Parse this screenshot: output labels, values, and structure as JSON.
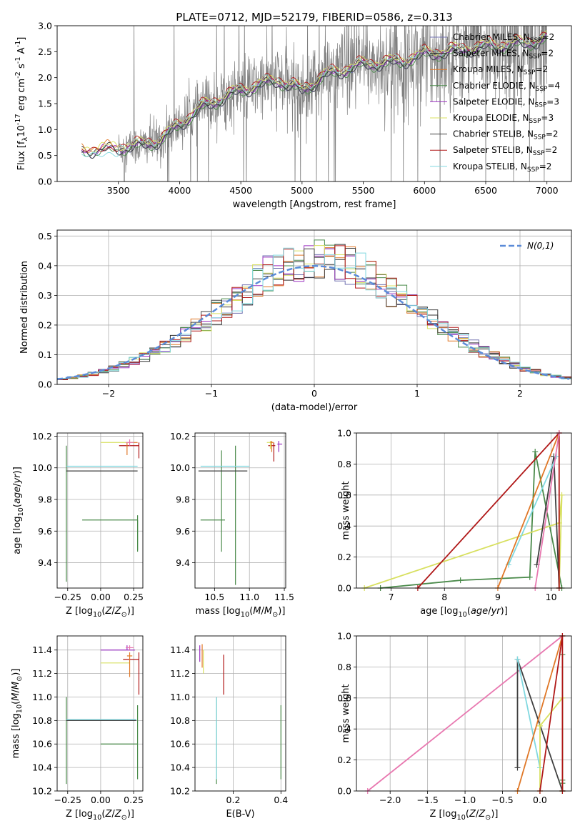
{
  "title": "PLATE=0712, MJD=52179, FIBERID=0586, z=0.313",
  "colors": {
    "Chabrier MILES": "#7070b0",
    "Salpeter MILES": "#303030",
    "Kroupa MILES": "#e07828",
    "Chabrier ELODIE": "#4a8a4a",
    "Salpeter ELODIE": "#9a30c0",
    "Kroupa ELODIE": "#d8e060",
    "Chabrier STELIB": "#404040",
    "Salpeter STELIB": "#b01818",
    "Kroupa STELIB": "#80d8e0",
    "pink": "#e878b0",
    "data": "#808080",
    "normal": "#5b8bd8"
  },
  "chart_data": [
    {
      "id": "spectrum",
      "type": "line",
      "title": "PLATE=0712, MJD=52179, FIBERID=0586, z=0.313",
      "xlabel": "wavelength [Angstrom, rest frame]",
      "ylabel": "Flux [f$_\\lambda$10$^{-17}$ erg cm$^{-2}$ s$^{-1}$ A$^{-1}$]",
      "xlim": [
        3000,
        7200
      ],
      "ylim": [
        0,
        3.0
      ],
      "xticks": [
        "3500",
        "4000",
        "4500",
        "5000",
        "5500",
        "6000",
        "6500",
        "7000"
      ],
      "yticks": [
        "0.0",
        "0.5",
        "1.0",
        "1.5",
        "2.0",
        "2.5",
        "3.0"
      ],
      "legend": [
        {
          "label": "Chabrier MILES, N",
          "sub": "SSP",
          "suffix": "=2",
          "color": "#7070b0"
        },
        {
          "label": "Salpeter MILES, N",
          "sub": "SSP",
          "suffix": "=2",
          "color": "#303030"
        },
        {
          "label": "Kroupa MILES, N",
          "sub": "SSP",
          "suffix": "=2",
          "color": "#e07828"
        },
        {
          "label": "Chabrier ELODIE, N",
          "sub": "SSP",
          "suffix": "=4",
          "color": "#4a8a4a"
        },
        {
          "label": "Salpeter ELODIE, N",
          "sub": "SSP",
          "suffix": "=3",
          "color": "#9a30c0"
        },
        {
          "label": "Kroupa ELODIE, N",
          "sub": "SSP",
          "suffix": "=3",
          "color": "#d8e060"
        },
        {
          "label": "Chabrier STELIB, N",
          "sub": "SSP",
          "suffix": "=2",
          "color": "#404040"
        },
        {
          "label": "Salpeter STELIB, N",
          "sub": "SSP",
          "suffix": "=2",
          "color": "#b01818"
        },
        {
          "label": "Kroupa STELIB, N",
          "sub": "SSP",
          "suffix": "=2",
          "color": "#80d8e0"
        }
      ],
      "model_anchor": {
        "wavelength": [
          3200,
          3500,
          3700,
          3850,
          4000,
          4200,
          4500,
          4800,
          5000,
          5200,
          5500,
          5800,
          6000,
          6200,
          6500,
          6800,
          7000
        ],
        "flux": [
          0.6,
          0.65,
          0.7,
          0.8,
          1.1,
          1.45,
          1.75,
          1.95,
          1.75,
          2.05,
          2.25,
          2.3,
          2.45,
          2.5,
          2.6,
          2.65,
          2.75
        ]
      },
      "data_range": [
        3500,
        7000
      ]
    },
    {
      "id": "residuals",
      "type": "histogram",
      "xlabel": "(data-model)/error",
      "ylabel": "Normed distribution",
      "xlim": [
        -2.5,
        2.5
      ],
      "ylim": [
        0,
        0.52
      ],
      "xticks": [
        "−2",
        "−1",
        "0",
        "1",
        "2"
      ],
      "yticks": [
        "0.0",
        "0.1",
        "0.2",
        "0.3",
        "0.4",
        "0.5"
      ],
      "legend": "$\\mathcal{N}(0,1)$",
      "bin_width": 0.1
    },
    {
      "id": "age_vs_Z",
      "type": "errorbar",
      "xlabel": "Z [log$_{10}$($Z$/$Z_\\odot$)]",
      "ylabel": "age  [log$_{10}$($age$/$yr$)]",
      "xlim": [
        -0.33,
        0.32
      ],
      "ylim": [
        9.24,
        10.22
      ],
      "xticks": [
        "−0.25",
        "0.00",
        "0.25"
      ],
      "yticks": [
        "9.4",
        "9.6",
        "9.8",
        "10.0",
        "10.2"
      ],
      "points": [
        {
          "x": 0.28,
          "y": 9.67,
          "xerr": [
            0.42,
            0.0
          ],
          "yerr": [
            0.2,
            0.0
          ],
          "color": "#4a8a4a"
        },
        {
          "x": -0.26,
          "y": 9.7,
          "xerr": [
            0.0,
            0.0
          ],
          "yerr": [
            0.42,
            0.44
          ],
          "color": "#4a8a4a"
        },
        {
          "x": 0.28,
          "y": 9.98,
          "xerr": [
            0.54,
            0.0
          ],
          "yerr": [
            0.0,
            0.0
          ],
          "color": "#404040"
        },
        {
          "x": 0.28,
          "y": 10.01,
          "xerr": [
            0.54,
            0.0
          ],
          "yerr": [
            0.0,
            0.0
          ],
          "color": "#80d8e0"
        },
        {
          "x": 0.29,
          "y": 10.14,
          "xerr": [
            0.15,
            0.0
          ],
          "yerr": [
            0.08,
            0.02
          ],
          "color": "#b01818"
        },
        {
          "x": 0.2,
          "y": 10.16,
          "xerr": [
            0.0,
            0.08
          ],
          "yerr": [
            0.08,
            0.0
          ],
          "color": "#e07828"
        },
        {
          "x": 0.0,
          "y": 10.16,
          "xerr": [
            0.0,
            0.25
          ],
          "yerr": [
            0.0,
            0.0
          ],
          "color": "#d8e060"
        },
        {
          "x": 0.22,
          "y": 10.16,
          "xerr": [
            0.03,
            0.03
          ],
          "yerr": [
            0.02,
            0.02
          ],
          "color": "#e878b0"
        },
        {
          "x": 0.28,
          "y": 9.7,
          "xerr": [
            0.0,
            0.0
          ],
          "yerr": [
            0.22,
            0.0
          ],
          "color": "#4a8a4a"
        }
      ]
    },
    {
      "id": "age_vs_mass",
      "type": "errorbar",
      "xlabel": "mass [log$_{10}$($M$/$M_\\odot$)]",
      "ylabel": "",
      "xlim": [
        10.22,
        11.52
      ],
      "ylim": [
        9.24,
        10.22
      ],
      "xticks": [
        "10.5",
        "11.0",
        "11.5"
      ],
      "yticks": [
        "9.4",
        "9.6",
        "9.8",
        "10.0",
        "10.2"
      ],
      "points": [
        {
          "x": 10.6,
          "y": 9.67,
          "xerr": [
            0.3,
            0.05
          ],
          "yerr": [
            0.2,
            0.44
          ],
          "color": "#4a8a4a"
        },
        {
          "x": 10.8,
          "y": 9.7,
          "xerr": [
            0.0,
            0.0
          ],
          "yerr": [
            0.44,
            0.44
          ],
          "color": "#4a8a4a"
        },
        {
          "x": 10.62,
          "y": 9.98,
          "xerr": [
            0.35,
            0.35
          ],
          "yerr": [
            0.0,
            0.0
          ],
          "color": "#404040"
        },
        {
          "x": 10.65,
          "y": 10.01,
          "xerr": [
            0.35,
            0.35
          ],
          "yerr": [
            0.0,
            0.0
          ],
          "color": "#80d8e0"
        },
        {
          "x": 11.35,
          "y": 10.14,
          "xerr": [
            0.08,
            0.02
          ],
          "yerr": [
            0.1,
            0.02
          ],
          "color": "#b01818"
        },
        {
          "x": 11.42,
          "y": 10.15,
          "xerr": [
            0.02,
            0.05
          ],
          "yerr": [
            0.05,
            0.02
          ],
          "color": "#9a30c0"
        },
        {
          "x": 11.3,
          "y": 10.16,
          "xerr": [
            0.05,
            0.05
          ],
          "yerr": [
            0.04,
            0.01
          ],
          "color": "#d8e060"
        },
        {
          "x": 11.32,
          "y": 10.16,
          "xerr": [
            0.02,
            0.02
          ],
          "yerr": [
            0.06,
            0.01
          ],
          "color": "#e07828"
        }
      ]
    },
    {
      "id": "weight_vs_age",
      "type": "line",
      "xlabel": "age  [log$_{10}$($age$/$yr$)]",
      "ylabel": "mass weight",
      "xlim": [
        6.35,
        10.38
      ],
      "ylim": [
        0,
        1.0
      ],
      "xticks": [
        "7",
        "8",
        "9",
        "10"
      ],
      "yticks": [
        "0.0",
        "0.2",
        "0.4",
        "0.6",
        "0.8",
        "1.0"
      ],
      "series": [
        {
          "color": "#4a8a4a",
          "x": [
            6.8,
            8.3,
            9.6,
            9.7,
            10.2
          ],
          "y": [
            0.0,
            0.05,
            0.07,
            0.88,
            0.0
          ]
        },
        {
          "color": "#d8e060",
          "x": [
            6.5,
            10.15,
            10.2,
            10.15
          ],
          "y": [
            0.0,
            0.42,
            0.6,
            0.0
          ]
        },
        {
          "color": "#404040",
          "x": [
            9.73,
            10.05,
            10.15
          ],
          "y": [
            0.15,
            0.85,
            0.0
          ]
        },
        {
          "color": "#80d8e0",
          "x": [
            9.2,
            10.1
          ],
          "y": [
            0.15,
            0.85
          ]
        },
        {
          "color": "#e07828",
          "x": [
            9.0,
            10.15
          ],
          "y": [
            0.0,
            1.0
          ]
        },
        {
          "color": "#b01818",
          "x": [
            7.5,
            10.15,
            10.15
          ],
          "y": [
            0.0,
            1.0,
            0.0
          ]
        },
        {
          "color": "#e878b0",
          "x": [
            9.7,
            10.15
          ],
          "y": [
            0.0,
            1.0
          ]
        }
      ]
    },
    {
      "id": "mass_vs_Z",
      "type": "errorbar",
      "xlabel": "Z [log$_{10}$($Z$/$Z_\\odot$)]",
      "ylabel": "mass [log$_{10}$($M$/$M_\\odot$)]",
      "xlim": [
        -0.33,
        0.32
      ],
      "ylim": [
        10.2,
        11.52
      ],
      "xticks": [
        "−0.25",
        "0.00",
        "0.25"
      ],
      "yticks": [
        "10.2",
        "10.4",
        "10.6",
        "10.8",
        "11.0",
        "11.2",
        "11.4"
      ],
      "points": [
        {
          "x": 0.28,
          "y": 10.6,
          "xerr": [
            0.28,
            0.0
          ],
          "yerr": [
            0.3,
            0.33
          ],
          "color": "#4a8a4a"
        },
        {
          "x": -0.26,
          "y": 10.63,
          "xerr": [
            0.0,
            0.0
          ],
          "yerr": [
            0.37,
            0.37
          ],
          "color": "#4a8a4a"
        },
        {
          "x": 0.27,
          "y": 10.8,
          "xerr": [
            0.53,
            0.0
          ],
          "yerr": [
            0.0,
            0.0
          ],
          "color": "#404040"
        },
        {
          "x": 0.27,
          "y": 10.81,
          "xerr": [
            0.53,
            0.0
          ],
          "yerr": [
            0.0,
            0.0
          ],
          "color": "#80d8e0"
        },
        {
          "x": 0.29,
          "y": 11.32,
          "xerr": [
            0.12,
            0.0
          ],
          "yerr": [
            0.3,
            0.06
          ],
          "color": "#b01818"
        },
        {
          "x": 0.2,
          "y": 11.4,
          "xerr": [
            0.2,
            0.06
          ],
          "yerr": [
            0.0,
            0.04
          ],
          "color": "#9a30c0"
        },
        {
          "x": 0.1,
          "y": 11.29,
          "xerr": [
            0.1,
            0.12
          ],
          "yerr": [
            0.0,
            0.0
          ],
          "color": "#d8e060"
        },
        {
          "x": 0.22,
          "y": 11.35,
          "xerr": [
            0.02,
            0.02
          ],
          "yerr": [
            0.18,
            0.03
          ],
          "color": "#e07828"
        },
        {
          "x": 0.22,
          "y": 11.42,
          "xerr": [
            0.03,
            0.03
          ],
          "yerr": [
            0.02,
            0.02
          ],
          "color": "#e878b0"
        }
      ]
    },
    {
      "id": "mass_vs_EBV",
      "type": "errorbar",
      "xlabel": "E(B-V)",
      "ylabel": "",
      "xlim": [
        0.04,
        0.42
      ],
      "ylim": [
        10.2,
        11.52
      ],
      "xticks": [
        "0.2",
        "0.4"
      ],
      "yticks": [
        "10.2",
        "10.4",
        "10.6",
        "10.8",
        "11.0",
        "11.2",
        "11.4"
      ],
      "points": [
        {
          "x": 0.4,
          "y": 10.6,
          "xerr": [
            0,
            0
          ],
          "yerr": [
            0.3,
            0.33
          ],
          "color": "#4a8a4a"
        },
        {
          "x": 0.13,
          "y": 10.63,
          "xerr": [
            0,
            0
          ],
          "yerr": [
            0.37,
            0.37
          ],
          "color": "#4a8a4a"
        },
        {
          "x": 0.13,
          "y": 10.8,
          "xerr": [
            0,
            0
          ],
          "yerr": [
            0.5,
            0.2
          ],
          "color": "#80d8e0"
        },
        {
          "x": 0.16,
          "y": 11.2,
          "xerr": [
            0,
            0
          ],
          "yerr": [
            0.18,
            0.16
          ],
          "color": "#b01818"
        },
        {
          "x": 0.07,
          "y": 11.35,
          "xerr": [
            0,
            0
          ],
          "yerr": [
            0.1,
            0.1
          ],
          "color": "#e07828"
        },
        {
          "x": 0.075,
          "y": 11.3,
          "xerr": [
            0,
            0
          ],
          "yerr": [
            0.1,
            0.1
          ],
          "color": "#d8e060"
        },
        {
          "x": 0.06,
          "y": 11.37,
          "xerr": [
            0,
            0
          ],
          "yerr": [
            0.07,
            0.07
          ],
          "color": "#9a30c0"
        }
      ]
    },
    {
      "id": "weight_vs_Z",
      "type": "line",
      "xlabel": "Z [log$_{10}$($Z$/$Z_\\odot$)]",
      "ylabel": "mass weight",
      "xlim": [
        -2.45,
        0.42
      ],
      "ylim": [
        0,
        1.0
      ],
      "xticks": [
        "−2.0",
        "−1.5",
        "−1.0",
        "−0.5",
        "0.0"
      ],
      "yticks": [
        "0.0",
        "0.2",
        "0.4",
        "0.6",
        "0.8",
        "1.0"
      ],
      "series": [
        {
          "color": "#e878b0",
          "x": [
            -2.3,
            0.3
          ],
          "y": [
            0.0,
            1.0
          ]
        },
        {
          "color": "#404040",
          "x": [
            -0.3,
            -0.3,
            0.3
          ],
          "y": [
            0.15,
            0.85,
            0.0
          ]
        },
        {
          "color": "#80d8e0",
          "x": [
            -0.3,
            0.0
          ],
          "y": [
            0.85,
            0.15
          ]
        },
        {
          "color": "#d8e060",
          "x": [
            0.0,
            0.0,
            0.3,
            0.3
          ],
          "y": [
            0.0,
            0.42,
            0.6,
            0.0
          ]
        },
        {
          "color": "#4a8a4a",
          "x": [
            0.3,
            0.3,
            0.3,
            0.3
          ],
          "y": [
            0.0,
            0.05,
            0.88,
            0.07
          ]
        },
        {
          "color": "#e07828",
          "x": [
            -0.3,
            0.3
          ],
          "y": [
            0.0,
            1.0
          ]
        },
        {
          "color": "#b01818",
          "x": [
            0.0,
            0.3,
            0.3
          ],
          "y": [
            0.0,
            1.0,
            0.0
          ]
        }
      ]
    }
  ]
}
